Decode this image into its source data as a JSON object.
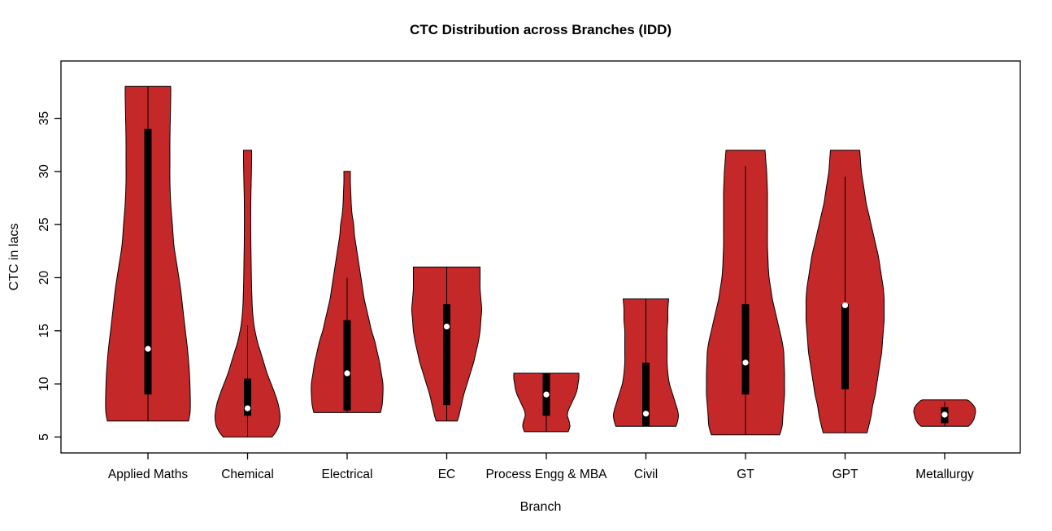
{
  "title": "CTC Distribution across Branches (IDD)",
  "x_axis_label": "Branch",
  "y_axis_label": "CTC in lacs",
  "colors": {
    "violin_fill": "#C52828",
    "violin_stroke": "#000000",
    "box_fill": "#000000",
    "median_dot": "#FFFFFF",
    "plot_border": "#000000",
    "background": "#FFFFFF"
  },
  "chart_data": {
    "type": "violin",
    "title": "CTC Distribution across Branches (IDD)",
    "xlabel": "Branch",
    "ylabel": "CTC in lacs",
    "ylim": [
      3.5,
      40.4
    ],
    "yticks": [
      5,
      10,
      15,
      20,
      25,
      30,
      35
    ],
    "grid": false,
    "legend": "none",
    "categories": [
      "Applied Maths",
      "Chemical",
      "Electrical",
      "EC",
      "Process Engg & MBA",
      "Civil",
      "GT",
      "GPT",
      "Metallurgy"
    ],
    "series": [
      {
        "name": "Applied Maths",
        "min": 6.5,
        "max": 38,
        "q1": 9,
        "q3": 34,
        "median": 13.3,
        "whisker_low": 6.5,
        "whisker_high": 38,
        "profile": [
          [
            6.5,
            50
          ],
          [
            7.5,
            52
          ],
          [
            9,
            52
          ],
          [
            11,
            51
          ],
          [
            13,
            49
          ],
          [
            15,
            46
          ],
          [
            17,
            43
          ],
          [
            19,
            40
          ],
          [
            21,
            36
          ],
          [
            23,
            32
          ],
          [
            25,
            30
          ],
          [
            27,
            28
          ],
          [
            29,
            27
          ],
          [
            31,
            27
          ],
          [
            33,
            27
          ],
          [
            35,
            27.5
          ],
          [
            37,
            28
          ],
          [
            38,
            28
          ]
        ]
      },
      {
        "name": "Chemical",
        "min": 5,
        "max": 32,
        "q1": 7,
        "q3": 10.5,
        "median": 7.7,
        "whisker_low": 5,
        "whisker_high": 15.5,
        "profile": [
          [
            5,
            30
          ],
          [
            5.5,
            35
          ],
          [
            6.2,
            39
          ],
          [
            7,
            40
          ],
          [
            8,
            38
          ],
          [
            9,
            34
          ],
          [
            10,
            29
          ],
          [
            11,
            24
          ],
          [
            12,
            20
          ],
          [
            13,
            16
          ],
          [
            14,
            12
          ],
          [
            15.5,
            8
          ],
          [
            17,
            6
          ],
          [
            19,
            5
          ],
          [
            21,
            4.5
          ],
          [
            24,
            4
          ],
          [
            27,
            4
          ],
          [
            29,
            4.5
          ],
          [
            31,
            5
          ],
          [
            32,
            5
          ]
        ]
      },
      {
        "name": "Electrical",
        "min": 7.3,
        "max": 30,
        "q1": 7.5,
        "q3": 16,
        "median": 11,
        "whisker_low": 7.3,
        "whisker_high": 20,
        "profile": [
          [
            7.3,
            41
          ],
          [
            8,
            43
          ],
          [
            9,
            44
          ],
          [
            10,
            44
          ],
          [
            11,
            42
          ],
          [
            12,
            40
          ],
          [
            13,
            37
          ],
          [
            14,
            34
          ],
          [
            15,
            30
          ],
          [
            16,
            27
          ],
          [
            17,
            24
          ],
          [
            18,
            21
          ],
          [
            19,
            19
          ],
          [
            20,
            17
          ],
          [
            21,
            15
          ],
          [
            22,
            13
          ],
          [
            23,
            11
          ],
          [
            24,
            9
          ],
          [
            25,
            8
          ],
          [
            26,
            6
          ],
          [
            27,
            5
          ],
          [
            28,
            4.5
          ],
          [
            29,
            4
          ],
          [
            30,
            4
          ]
        ]
      },
      {
        "name": "EC",
        "min": 6.5,
        "max": 21,
        "q1": 8,
        "q3": 17.5,
        "median": 15.4,
        "whisker_low": 6.5,
        "whisker_high": 21,
        "profile": [
          [
            6.5,
            13
          ],
          [
            7,
            15
          ],
          [
            8,
            18
          ],
          [
            9,
            21
          ],
          [
            10,
            25
          ],
          [
            11,
            29
          ],
          [
            12,
            33
          ],
          [
            13,
            36
          ],
          [
            14,
            39
          ],
          [
            15,
            41
          ],
          [
            16,
            42
          ],
          [
            17,
            43
          ],
          [
            18,
            42
          ],
          [
            19,
            41
          ],
          [
            20,
            41
          ],
          [
            21,
            41
          ]
        ]
      },
      {
        "name": "Process Engg & MBA",
        "min": 5.5,
        "max": 11,
        "q1": 7,
        "q3": 11,
        "median": 9,
        "whisker_low": 5.5,
        "whisker_high": 11,
        "profile": [
          [
            5.5,
            27
          ],
          [
            6,
            29
          ],
          [
            6.5,
            28
          ],
          [
            7,
            26
          ],
          [
            7.5,
            27
          ],
          [
            8,
            30
          ],
          [
            8.5,
            33
          ],
          [
            9,
            36
          ],
          [
            9.5,
            38
          ],
          [
            10,
            39
          ],
          [
            10.5,
            40
          ],
          [
            11,
            40
          ]
        ]
      },
      {
        "name": "Civil",
        "min": 6,
        "max": 18,
        "q1": 6,
        "q3": 12,
        "median": 7.2,
        "whisker_low": 6,
        "whisker_high": 18,
        "profile": [
          [
            6,
            37
          ],
          [
            6.5,
            39
          ],
          [
            7,
            40
          ],
          [
            7.5,
            39
          ],
          [
            8,
            37
          ],
          [
            9,
            33
          ],
          [
            10,
            29
          ],
          [
            11,
            27
          ],
          [
            12,
            26
          ],
          [
            13,
            26
          ],
          [
            14,
            26
          ],
          [
            15,
            26
          ],
          [
            16,
            27
          ],
          [
            17,
            27
          ],
          [
            18,
            28
          ]
        ]
      },
      {
        "name": "GT",
        "min": 5.2,
        "max": 32,
        "q1": 9,
        "q3": 17.5,
        "median": 12,
        "whisker_low": 5.2,
        "whisker_high": 30.5,
        "profile": [
          [
            5.2,
            42
          ],
          [
            6,
            45
          ],
          [
            7,
            46
          ],
          [
            8,
            47
          ],
          [
            9,
            48
          ],
          [
            10,
            48
          ],
          [
            11,
            48
          ],
          [
            12,
            47.5
          ],
          [
            13,
            47
          ],
          [
            14,
            45
          ],
          [
            15,
            42
          ],
          [
            16,
            39
          ],
          [
            17,
            36
          ],
          [
            18,
            33
          ],
          [
            19,
            31
          ],
          [
            20,
            29
          ],
          [
            21,
            28
          ],
          [
            22,
            27.5
          ],
          [
            23,
            27
          ],
          [
            25,
            27
          ],
          [
            27,
            27
          ],
          [
            28,
            27
          ],
          [
            29,
            26.5
          ],
          [
            30,
            26
          ],
          [
            31,
            25
          ],
          [
            32,
            24
          ]
        ]
      },
      {
        "name": "GPT",
        "min": 5.4,
        "max": 32,
        "q1": 9.5,
        "q3": 17.5,
        "median": 17.4,
        "whisker_low": 5.4,
        "whisker_high": 29.5,
        "profile": [
          [
            5.4,
            27
          ],
          [
            6,
            29
          ],
          [
            7,
            32
          ],
          [
            8,
            34
          ],
          [
            9,
            37
          ],
          [
            10,
            39
          ],
          [
            11,
            41
          ],
          [
            12,
            43
          ],
          [
            13,
            45
          ],
          [
            14,
            46
          ],
          [
            15,
            47
          ],
          [
            16,
            48
          ],
          [
            17,
            48
          ],
          [
            18,
            48
          ],
          [
            19,
            47
          ],
          [
            20,
            45
          ],
          [
            21,
            43
          ],
          [
            22,
            41
          ],
          [
            23,
            38
          ],
          [
            24,
            35
          ],
          [
            25,
            32
          ],
          [
            26,
            29
          ],
          [
            27,
            26
          ],
          [
            28,
            24
          ],
          [
            29,
            22
          ],
          [
            30,
            20
          ],
          [
            31,
            19
          ],
          [
            32,
            18
          ]
        ]
      },
      {
        "name": "Metallurgy",
        "min": 6,
        "max": 8.5,
        "q1": 6.3,
        "q3": 7.8,
        "median": 7.1,
        "whisker_low": 6,
        "whisker_high": 8.3,
        "profile": [
          [
            6,
            29
          ],
          [
            6.3,
            33
          ],
          [
            6.7,
            36
          ],
          [
            7,
            37
          ],
          [
            7.4,
            38
          ],
          [
            7.8,
            37
          ],
          [
            8.1,
            34
          ],
          [
            8.4,
            30
          ],
          [
            8.5,
            27
          ]
        ]
      }
    ]
  }
}
